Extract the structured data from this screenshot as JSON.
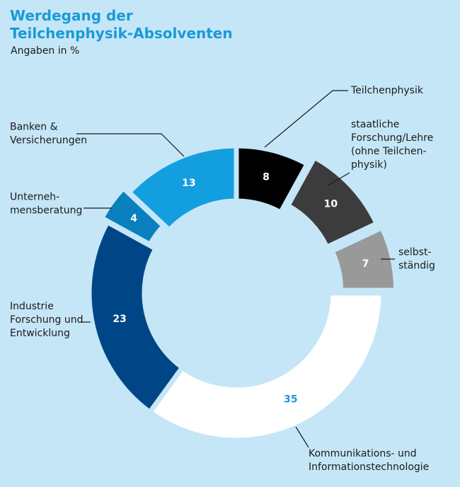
{
  "title_lines": [
    "Werdegang der",
    "Teilchenphysik-Absolventen"
  ],
  "subtitle": "Angaben in %",
  "colors": {
    "background": "#c5e6f7",
    "title": "#1a9ad6",
    "leader": "#1a1a1a"
  },
  "chart_data": {
    "type": "pie",
    "donut": true,
    "title": "Werdegang der Teilchenphysik-Absolventen",
    "subtitle": "Angaben in %",
    "unit": "%",
    "slices": [
      {
        "label_lines": [
          "Teilchenphysik"
        ],
        "value": 8,
        "color": "#000000",
        "value_color": "#ffffff"
      },
      {
        "label_lines": [
          "staatliche",
          "Forschung/Lehre",
          "(ohne Teilchen-",
          "physik)"
        ],
        "value": 10,
        "color": "#3c3c3c",
        "value_color": "#ffffff"
      },
      {
        "label_lines": [
          "selbst-",
          "ständig"
        ],
        "value": 7,
        "color": "#999999",
        "value_color": "#ffffff"
      },
      {
        "label_lines": [
          "Kommunikations- und",
          "Informationstechnologie"
        ],
        "value": 35,
        "color": "#ffffff",
        "value_color": "#1a9ad6"
      },
      {
        "label_lines": [
          "Industrie",
          "Forschung und",
          "Entwicklung"
        ],
        "value": 23,
        "color": "#004687",
        "value_color": "#ffffff"
      },
      {
        "label_lines": [
          "Unterneh-",
          "mensberatung"
        ],
        "value": 4,
        "color": "#0a7fbd",
        "value_color": "#ffffff"
      },
      {
        "label_lines": [
          "Banken &",
          "Versicherungen"
        ],
        "value": 13,
        "color": "#139ee0",
        "value_color": "#ffffff"
      }
    ]
  }
}
